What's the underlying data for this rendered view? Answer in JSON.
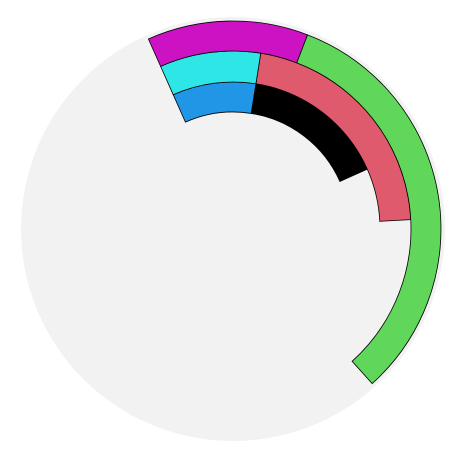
{
  "chart_data": {
    "type": "pie",
    "title": "",
    "background_color": "#f2f2f2",
    "outline_color": "#000000",
    "rings": [
      {
        "name": "",
        "level": 1,
        "slices": [
          {
            "label": "",
            "value": 22,
            "color": "#2196e6"
          },
          {
            "label": "",
            "value": 38,
            "color": "#000000"
          }
        ]
      },
      {
        "name": "",
        "level": 2,
        "slices": [
          {
            "label": "",
            "value": 22,
            "color": "#2ee6e6"
          },
          {
            "label": "",
            "value": 52,
            "color": "#e05a6d"
          }
        ]
      },
      {
        "name": "",
        "level": 3,
        "slices": [
          {
            "label": "",
            "value": 30,
            "color": "#cc12c2"
          },
          {
            "label": "",
            "value": 78,
            "color": "#60d65a"
          }
        ]
      }
    ]
  }
}
